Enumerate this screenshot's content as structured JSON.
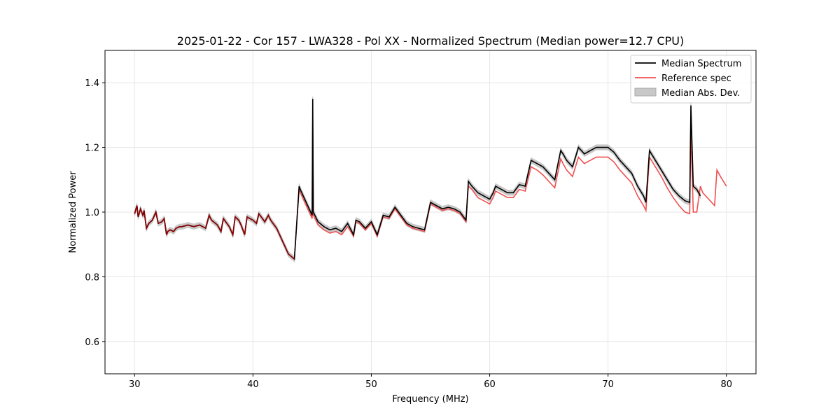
{
  "chart_data": {
    "type": "line",
    "title": "2025-01-22 - Cor 157 - LWA328 - Pol XX - Normalized Spectrum (Median power=12.7 CPU)",
    "xlabel": "Frequency (MHz)",
    "ylabel": "Normalized Power",
    "xlim": [
      27.5,
      82.5
    ],
    "ylim": [
      0.5,
      1.5
    ],
    "xticks": [
      30,
      40,
      50,
      60,
      70,
      80
    ],
    "yticks": [
      0.6,
      0.8,
      1.0,
      1.2,
      1.4
    ],
    "xtick_labels": [
      "30",
      "40",
      "50",
      "60",
      "70",
      "80"
    ],
    "ytick_labels": [
      "0.6",
      "0.8",
      "1.0",
      "1.2",
      "1.4"
    ],
    "grid": true,
    "legend_position": "top-right",
    "legend": [
      "Median Spectrum",
      "Reference spec",
      "Median Abs. Dev."
    ],
    "colors": {
      "median": "#000000",
      "reference": "#f05050",
      "mad": "#c8c8c8",
      "overlap": "#8b0000"
    },
    "series": [
      {
        "name": "Median Spectrum",
        "x": [
          30.0,
          30.2,
          30.3,
          30.5,
          30.7,
          30.8,
          31.0,
          31.2,
          31.5,
          31.8,
          32.0,
          32.3,
          32.5,
          32.7,
          32.8,
          33.0,
          33.3,
          33.5,
          33.8,
          34.0,
          34.5,
          35.0,
          35.5,
          36.0,
          36.3,
          36.5,
          37.0,
          37.3,
          37.5,
          37.8,
          38.0,
          38.3,
          38.5,
          38.8,
          39.0,
          39.3,
          39.5,
          40.0,
          40.3,
          40.5,
          41.0,
          41.3,
          41.5,
          42.0,
          42.5,
          43.0,
          43.5,
          43.9,
          44.0,
          44.5,
          45.0,
          45.05,
          45.1,
          45.5,
          46.0,
          46.5,
          47.0,
          47.5,
          48.0,
          48.5,
          48.7,
          49.0,
          49.5,
          50.0,
          50.5,
          51.0,
          51.5,
          52.0,
          52.5,
          53.0,
          53.5,
          54.0,
          54.5,
          55.0,
          55.5,
          56.0,
          56.5,
          57.0,
          57.5,
          58.0,
          58.2,
          58.5,
          59.0,
          59.5,
          60.0,
          60.3,
          60.5,
          61.0,
          61.5,
          62.0,
          62.5,
          63.0,
          63.5,
          64.0,
          64.5,
          65.0,
          65.5,
          66.0,
          66.2,
          66.5,
          67.0,
          67.5,
          68.0,
          68.5,
          69.0,
          69.5,
          70.0,
          70.5,
          71.0,
          71.5,
          72.0,
          72.5,
          73.0,
          73.2,
          73.5,
          74.0,
          74.5,
          75.0,
          75.5,
          76.0,
          76.5,
          76.9,
          77.0,
          77.2,
          77.5,
          77.8
        ],
        "y": [
          0.995,
          1.02,
          0.985,
          1.01,
          0.99,
          1.005,
          0.95,
          0.965,
          0.975,
          1.0,
          0.965,
          0.97,
          0.98,
          0.93,
          0.94,
          0.945,
          0.94,
          0.95,
          0.955,
          0.955,
          0.96,
          0.955,
          0.96,
          0.95,
          0.99,
          0.975,
          0.96,
          0.94,
          0.98,
          0.965,
          0.955,
          0.93,
          0.985,
          0.975,
          0.96,
          0.93,
          0.985,
          0.975,
          0.965,
          0.995,
          0.97,
          0.99,
          0.975,
          0.95,
          0.91,
          0.87,
          0.855,
          1.08,
          1.07,
          1.03,
          0.99,
          1.35,
          1.0,
          0.97,
          0.955,
          0.945,
          0.95,
          0.94,
          0.965,
          0.93,
          0.975,
          0.97,
          0.95,
          0.97,
          0.93,
          0.99,
          0.985,
          1.015,
          0.99,
          0.965,
          0.955,
          0.95,
          0.945,
          1.03,
          1.02,
          1.01,
          1.015,
          1.01,
          1.0,
          0.975,
          1.095,
          1.08,
          1.06,
          1.05,
          1.04,
          1.06,
          1.08,
          1.07,
          1.06,
          1.06,
          1.085,
          1.08,
          1.16,
          1.15,
          1.14,
          1.12,
          1.1,
          1.19,
          1.18,
          1.16,
          1.14,
          1.2,
          1.18,
          1.19,
          1.2,
          1.2,
          1.2,
          1.185,
          1.16,
          1.14,
          1.12,
          1.08,
          1.05,
          1.03,
          1.19,
          1.16,
          1.13,
          1.1,
          1.07,
          1.05,
          1.035,
          1.03,
          1.33,
          1.08,
          1.07,
          1.05
        ]
      },
      {
        "name": "Reference spec",
        "x": [
          30.0,
          30.2,
          30.3,
          30.5,
          30.7,
          30.8,
          31.0,
          31.2,
          31.5,
          31.8,
          32.0,
          32.3,
          32.5,
          32.7,
          32.8,
          33.0,
          33.3,
          33.5,
          33.8,
          34.0,
          34.5,
          35.0,
          35.5,
          36.0,
          36.3,
          36.5,
          37.0,
          37.3,
          37.5,
          37.8,
          38.0,
          38.3,
          38.5,
          38.8,
          39.0,
          39.3,
          39.5,
          40.0,
          40.3,
          40.5,
          41.0,
          41.3,
          41.5,
          42.0,
          42.5,
          43.0,
          43.5,
          43.9,
          44.0,
          44.5,
          45.0,
          45.05,
          45.1,
          45.5,
          46.0,
          46.5,
          47.0,
          47.5,
          48.0,
          48.5,
          48.7,
          49.0,
          49.5,
          50.0,
          50.5,
          51.0,
          51.5,
          52.0,
          52.5,
          53.0,
          53.5,
          54.0,
          54.5,
          55.0,
          55.5,
          56.0,
          56.5,
          57.0,
          57.5,
          58.0,
          58.2,
          58.5,
          59.0,
          59.5,
          60.0,
          60.3,
          60.5,
          61.0,
          61.5,
          62.0,
          62.5,
          63.0,
          63.5,
          64.0,
          64.5,
          65.0,
          65.5,
          66.0,
          66.2,
          66.5,
          67.0,
          67.5,
          68.0,
          68.5,
          69.0,
          69.5,
          70.0,
          70.5,
          71.0,
          71.5,
          72.0,
          72.5,
          73.0,
          73.2,
          73.5,
          74.0,
          74.5,
          75.0,
          75.5,
          76.0,
          76.5,
          76.9,
          77.0,
          77.2,
          77.5,
          77.8,
          78.0,
          78.5,
          79.0,
          79.2,
          79.5,
          80.0
        ],
        "y": [
          0.995,
          1.02,
          0.985,
          1.01,
          0.99,
          1.005,
          0.95,
          0.965,
          0.975,
          1.0,
          0.965,
          0.97,
          0.98,
          0.93,
          0.94,
          0.945,
          0.94,
          0.95,
          0.955,
          0.955,
          0.96,
          0.955,
          0.96,
          0.95,
          0.99,
          0.975,
          0.96,
          0.94,
          0.98,
          0.965,
          0.955,
          0.93,
          0.985,
          0.975,
          0.96,
          0.93,
          0.985,
          0.975,
          0.965,
          0.995,
          0.97,
          0.99,
          0.975,
          0.95,
          0.91,
          0.87,
          0.855,
          1.07,
          1.06,
          1.02,
          0.98,
          1.28,
          0.99,
          0.96,
          0.945,
          0.935,
          0.94,
          0.93,
          0.955,
          0.925,
          0.97,
          0.965,
          0.945,
          0.965,
          0.925,
          0.985,
          0.98,
          1.01,
          0.985,
          0.96,
          0.95,
          0.945,
          0.94,
          1.025,
          1.015,
          1.005,
          1.01,
          1.005,
          0.995,
          0.97,
          1.08,
          1.07,
          1.045,
          1.035,
          1.025,
          1.045,
          1.065,
          1.055,
          1.045,
          1.045,
          1.07,
          1.065,
          1.14,
          1.13,
          1.115,
          1.095,
          1.075,
          1.165,
          1.15,
          1.13,
          1.11,
          1.17,
          1.15,
          1.16,
          1.17,
          1.17,
          1.17,
          1.155,
          1.13,
          1.11,
          1.09,
          1.05,
          1.02,
          1.005,
          1.17,
          1.14,
          1.11,
          1.075,
          1.045,
          1.02,
          1.0,
          0.995,
          1.27,
          1.0,
          1.0,
          1.08,
          1.06,
          1.04,
          1.02,
          1.13,
          1.11,
          1.08
        ]
      }
    ]
  },
  "legend": {
    "median_label": "Median Spectrum",
    "reference_label": "Reference spec",
    "mad_label": "Median Abs. Dev."
  }
}
